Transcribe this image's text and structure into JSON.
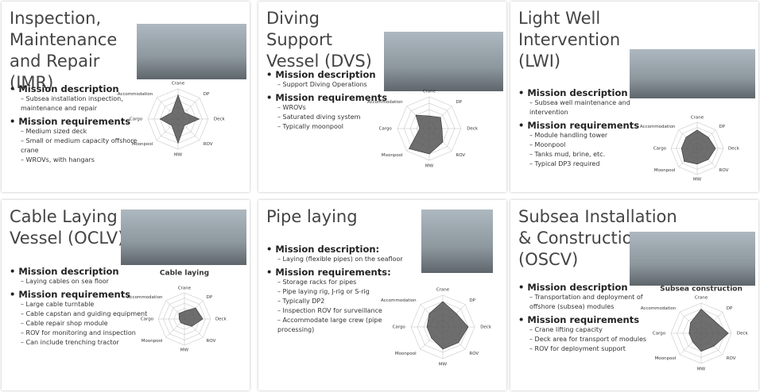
{
  "radar_axes": [
    "Crane",
    "DP",
    "Deck",
    "ROV",
    "MW",
    "Moonpool",
    "Cargo",
    "Accommodation"
  ],
  "radar_lim": [
    0,
    10
  ],
  "panels": [
    {
      "title": "Inspection, Maintenance and Repair (IMR)",
      "sections": [
        {
          "heading": "Mission description",
          "items": [
            "Subsea installation inspection, maintenance and repair"
          ]
        },
        {
          "heading": "Mission requirements",
          "items": [
            "Medium sized deck",
            "Small or medium capacity offshore crane",
            "WROVs, with hangars"
          ]
        }
      ],
      "radar": [
        8,
        3,
        7,
        3,
        8,
        3,
        6,
        3
      ]
    },
    {
      "title": "Diving Support Vessel (DVS)",
      "sections": [
        {
          "heading": "Mission description",
          "items": [
            "Support Diving Operations"
          ]
        },
        {
          "heading": "Mission requirements",
          "items": [
            "WROVs",
            "Saturated diving system",
            "Typically moonpool"
          ]
        }
      ],
      "radar": [
        4,
        5,
        4,
        6,
        8,
        9,
        3,
        6
      ]
    },
    {
      "title": "Light Well Intervention (LWI)",
      "sections": [
        {
          "heading": "Mission description",
          "items": [
            "Subsea well maintenance and intervention"
          ]
        },
        {
          "heading": "Mission requirements",
          "items": [
            "Module handling tower",
            "Moonpool",
            "Tanks mud, brine, etc.",
            "Typical DP3 required"
          ]
        }
      ],
      "radar": [
        7,
        6,
        7,
        6,
        6,
        7,
        6,
        6
      ]
    },
    {
      "title": "Cable Laying Vessel (OCLV)",
      "chart_title": "Cable laying",
      "sections": [
        {
          "heading": "Mission description",
          "items": [
            "Laying cables on sea floor"
          ]
        },
        {
          "heading": "Mission requirements",
          "items": [
            "Large cable turntable",
            "Cable capstan and guiding equipment",
            "Cable repair shop module",
            "ROV for monitoring and inspection",
            "Can include trenching tractor"
          ]
        }
      ],
      "radar": [
        3,
        6,
        7,
        4,
        2,
        2,
        2,
        3
      ]
    },
    {
      "title": "Pipe laying",
      "sections": [
        {
          "heading": "Mission description:",
          "items": [
            "Laying (flexible pipes) on the seafloor"
          ]
        },
        {
          "heading": "Mission requirements:",
          "items": [
            "Storage racks for pipes",
            "Pipe laying rig, J-rig or S-rig",
            "Typically DP2",
            "Inspection ROV for surveillance",
            "Accommodate large crew (pipe processing)"
          ]
        }
      ],
      "radar": [
        8,
        6,
        8,
        7,
        7,
        5,
        5,
        6
      ]
    },
    {
      "title": "Subsea Installation & Construction (OSCV)",
      "chart_title": "Subsea construction",
      "sections": [
        {
          "heading": "Mission description",
          "items": [
            "Transportation and deployment of offshore (subsea) modules"
          ]
        },
        {
          "heading": "Mission requirements",
          "items": [
            "Crane lifting capacity",
            "Deck area for transport of modules",
            "ROV for deployment support"
          ]
        }
      ],
      "radar": [
        8,
        6,
        9,
        6,
        6,
        4,
        4,
        5
      ]
    }
  ]
}
